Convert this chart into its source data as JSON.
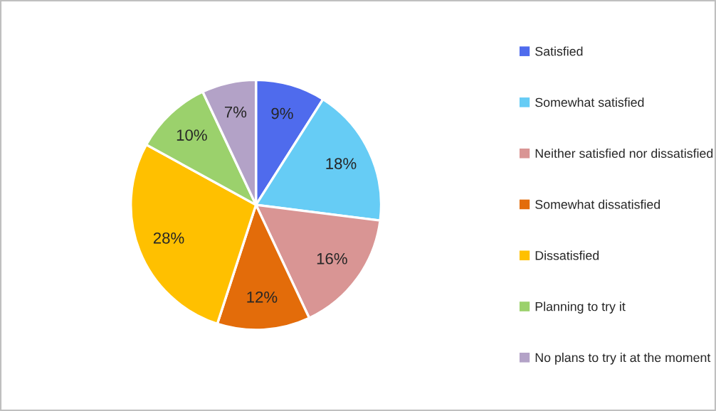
{
  "chart_data": {
    "type": "pie",
    "categories": [
      "Satisfied",
      "Somewhat satisfied",
      "Neither satisfied nor dissatisfied",
      "Somewhat dissatisfied",
      "Dissatisfied",
      "Planning to try it",
      "No plans to try it at the moment"
    ],
    "values": [
      9,
      18,
      16,
      12,
      28,
      10,
      7
    ],
    "colors": [
      "#4f6bed",
      "#66ccf5",
      "#d99594",
      "#e36c0a",
      "#ffc000",
      "#9bd16c",
      "#b3a2c7"
    ],
    "value_labels": [
      "9%",
      "18%",
      "16%",
      "12%",
      "28%",
      "10%",
      "7%"
    ],
    "legend": "right"
  }
}
